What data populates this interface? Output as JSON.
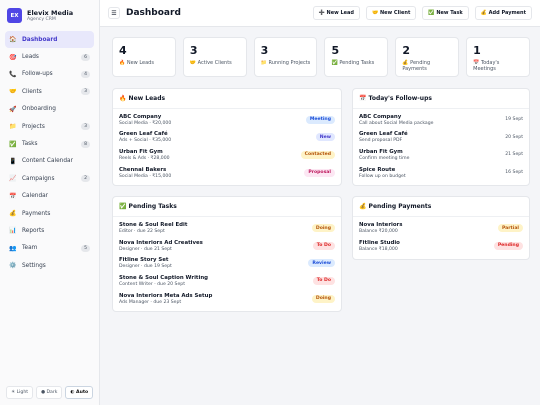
{
  "brand": {
    "logo": "EX",
    "name": "Elevix Media",
    "tagline": "Agency CRM"
  },
  "nav": [
    {
      "icon": "🏠",
      "label": "Dashboard",
      "active": true
    },
    {
      "icon": "🎯",
      "label": "Leads",
      "count": 6
    },
    {
      "icon": "📞",
      "label": "Follow-ups",
      "count": 4
    },
    {
      "icon": "🤝",
      "label": "Clients",
      "count": 3
    },
    {
      "icon": "🚀",
      "label": "Onboarding"
    },
    {
      "icon": "📁",
      "label": "Projects",
      "count": 3
    },
    {
      "icon": "✅",
      "label": "Tasks",
      "count": 8
    },
    {
      "icon": "📱",
      "label": "Content Calendar"
    },
    {
      "icon": "📈",
      "label": "Campaigns",
      "count": 2
    },
    {
      "icon": "📅",
      "label": "Calendar"
    },
    {
      "icon": "💰",
      "label": "Payments"
    },
    {
      "icon": "📊",
      "label": "Reports"
    },
    {
      "icon": "👥",
      "label": "Team",
      "count": 5
    },
    {
      "icon": "⚙️",
      "label": "Settings"
    }
  ],
  "theme": [
    {
      "label": "☀ Light"
    },
    {
      "label": "● Dark"
    },
    {
      "label": "◐ Auto",
      "active": true
    }
  ],
  "header": {
    "menu": "☰",
    "title": "Dashboard",
    "actions": [
      "➕ New Lead",
      "🤝 New Client",
      "✅ New Task",
      "💰 Add Payment"
    ]
  },
  "stats": [
    {
      "value": 4,
      "icon": "🔥",
      "label": "New Leads"
    },
    {
      "value": 3,
      "icon": "🤝",
      "label": "Active Clients"
    },
    {
      "value": 3,
      "icon": "📁",
      "label": "Running Projects"
    },
    {
      "value": 5,
      "icon": "✅",
      "label": "Pending Tasks"
    },
    {
      "value": 2,
      "icon": "💰",
      "label": "Pending Payments"
    },
    {
      "value": 1,
      "icon": "📅",
      "label": "Today's Meetings"
    }
  ],
  "panels": {
    "new_leads": {
      "title": "🔥 New Leads",
      "rows": [
        {
          "name": "ABC Company",
          "detail": "Social Media · ₹20,000",
          "status": "Meeting",
          "color": "#1d4ed8",
          "background": "#dbeafe"
        },
        {
          "name": "Green Leaf Café",
          "detail": "Ads + Social · ₹35,000",
          "status": "New",
          "color": "#4338ca",
          "background": "#e0e7ff"
        },
        {
          "name": "Urban Fit Gym",
          "detail": "Reels & Ads · ₹28,000",
          "status": "Contacted",
          "color": "#b45309",
          "background": "#fef3c7"
        },
        {
          "name": "Chennai Bakers",
          "detail": "Social Media · ₹15,000",
          "status": "Proposal",
          "color": "#be185d",
          "background": "#fce7f3"
        }
      ]
    },
    "follow_ups": {
      "title": "📅 Today's Follow-ups",
      "rows": [
        {
          "name": "ABC Company",
          "detail": "Call about Social Media package",
          "date": "19 Sept"
        },
        {
          "name": "Green Leaf Café",
          "detail": "Send proposal PDF",
          "date": "20 Sept"
        },
        {
          "name": "Urban Fit Gym",
          "detail": "Confirm meeting time",
          "date": "21 Sept"
        },
        {
          "name": "Spice Route",
          "detail": "Follow up on budget",
          "date": "16 Sept"
        }
      ]
    },
    "pending_tasks": {
      "title": "✅ Pending Tasks",
      "rows": [
        {
          "name": "Stone & Soul Reel Edit",
          "detail": "Editor · due 22 Sept",
          "status": "Doing",
          "color": "#b45309",
          "background": "#fef3c7"
        },
        {
          "name": "Nova Interiors Ad Creatives",
          "detail": "Designer · due 21 Sept",
          "status": "To Do",
          "color": "#dc2626",
          "background": "#fee2e2"
        },
        {
          "name": "Fitline Story Set",
          "detail": "Designer · due 19 Sept",
          "status": "Review",
          "color": "#1d4ed8",
          "background": "#dbeafe"
        },
        {
          "name": "Stone & Soul Caption Writing",
          "detail": "Content Writer · due 20 Sept",
          "status": "To Do",
          "color": "#dc2626",
          "background": "#fee2e2"
        },
        {
          "name": "Nova Interiors Meta Ads Setup",
          "detail": "Ads Manager · due 23 Sept",
          "status": "Doing",
          "color": "#b45309",
          "background": "#fef3c7"
        }
      ]
    },
    "pending_payments": {
      "title": "💰 Pending Payments",
      "rows": [
        {
          "name": "Nova Interiors",
          "detail": "Balance ₹20,000",
          "status": "Partial",
          "color": "#b45309",
          "background": "#fef3c7"
        },
        {
          "name": "Fitline Studio",
          "detail": "Balance ₹18,000",
          "status": "Pending",
          "color": "#dc2626",
          "background": "#fee2e2"
        }
      ]
    }
  }
}
